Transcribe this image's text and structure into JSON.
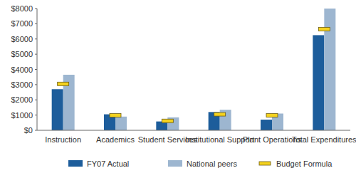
{
  "chart_data": {
    "type": "bar",
    "categories": [
      "Instruction",
      "Academics",
      "Student Services",
      "Institutional Support",
      "Plant Operations",
      "Total Expenditures"
    ],
    "series": [
      {
        "name": "FY07 Actual",
        "color": "#1d5d9b",
        "values": [
          2700,
          1050,
          580,
          1200,
          700,
          6250
        ]
      },
      {
        "name": "National peers",
        "color": "#9db6d0",
        "values": [
          3650,
          900,
          850,
          1350,
          1100,
          8000
        ]
      },
      {
        "name": "Budget Formula",
        "color": "#f4d21f",
        "type": "scatter",
        "marker": "dash",
        "values": [
          3050,
          980,
          620,
          1050,
          980,
          6650
        ]
      }
    ],
    "ylim": [
      0,
      8000
    ],
    "yticks": [
      {
        "value": 0,
        "label": "$0"
      },
      {
        "value": 1000,
        "label": "$1000"
      },
      {
        "value": 2000,
        "label": "$2000"
      },
      {
        "value": 3000,
        "label": "$3000"
      },
      {
        "value": 4000,
        "label": "$4000"
      },
      {
        "value": 5000,
        "label": "$5000"
      },
      {
        "value": 6000,
        "label": "$6000"
      },
      {
        "value": 7000,
        "label": "$7000"
      },
      {
        "value": 8000,
        "label": "$8000"
      }
    ],
    "grid": false,
    "legend": "bottom"
  }
}
